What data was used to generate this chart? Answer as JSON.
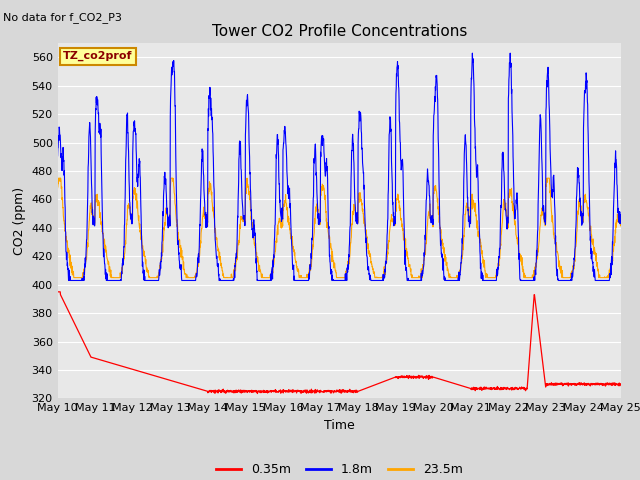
{
  "title": "Tower CO2 Profile Concentrations",
  "subtitle": "No data for f_CO2_P3",
  "xlabel": "Time",
  "ylabel": "CO2 (ppm)",
  "ylim": [
    320,
    570
  ],
  "yticks": [
    320,
    340,
    360,
    380,
    400,
    420,
    440,
    460,
    480,
    500,
    520,
    540,
    560
  ],
  "x_tick_labels": [
    "May 10",
    "May 11",
    "May 12",
    "May 13",
    "May 14",
    "May 15",
    "May 16",
    "May 17",
    "May 18",
    "May 19",
    "May 20",
    "May 21",
    "May 22",
    "May 23",
    "May 24",
    "May 25"
  ],
  "legend_labels": [
    "0.35m",
    "1.8m",
    "23.5m"
  ],
  "legend_colors": [
    "#ff0000",
    "#0000ff",
    "#ffa500"
  ],
  "bg_color": "#d8d8d8",
  "plot_bg_color": "#e8e8e8",
  "annotation_box_text": "TZ_co2prof",
  "annotation_box_facecolor": "#ffff99",
  "annotation_box_edgecolor": "#cc8800",
  "grid_color": "#ffffff"
}
